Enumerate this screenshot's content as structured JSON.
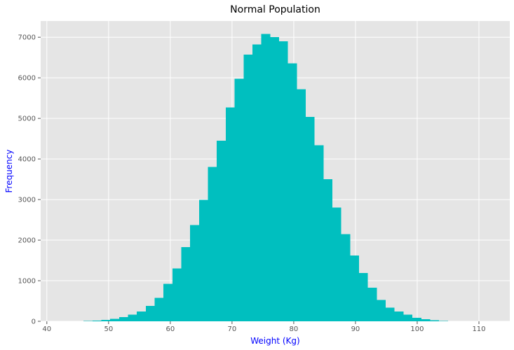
{
  "chart_data": {
    "type": "bar",
    "title": "Normal Population",
    "xlabel": "Weight (Kg)",
    "ylabel": "Frequency",
    "xlim": [
      39,
      115
    ],
    "ylim": [
      0,
      7400
    ],
    "x_ticks": [
      40,
      50,
      60,
      70,
      80,
      90,
      100,
      110
    ],
    "y_ticks": [
      0,
      1000,
      2000,
      3000,
      4000,
      5000,
      6000,
      7000
    ],
    "grid": true,
    "bin_edges": [
      44.5,
      45.94,
      47.38,
      48.82,
      50.26,
      51.7,
      53.14,
      54.58,
      56.02,
      57.46,
      58.9,
      60.34,
      61.78,
      63.22,
      64.66,
      66.1,
      67.54,
      68.98,
      70.42,
      71.86,
      73.3,
      74.74,
      76.18,
      77.62,
      79.06,
      80.5,
      81.94,
      83.38,
      84.82,
      86.26,
      87.7,
      89.14,
      90.58,
      92.02,
      93.46,
      94.9,
      96.34,
      97.78,
      99.22,
      100.66,
      102.1,
      103.54,
      104.98,
      106.42
    ],
    "values": [
      2,
      5,
      15,
      35,
      60,
      105,
      160,
      240,
      380,
      580,
      920,
      1300,
      1830,
      2370,
      2990,
      3800,
      4450,
      5270,
      5980,
      6570,
      6820,
      7080,
      7000,
      6900,
      6360,
      5720,
      5040,
      4340,
      3500,
      2800,
      2150,
      1620,
      1190,
      830,
      530,
      340,
      240,
      160,
      90,
      50,
      25,
      10,
      4
    ],
    "colors": {
      "bar": "#00bfbf",
      "plot_background": "#e5e5e5",
      "grid": "#ffffff",
      "axis_label": "#0000ff"
    }
  }
}
